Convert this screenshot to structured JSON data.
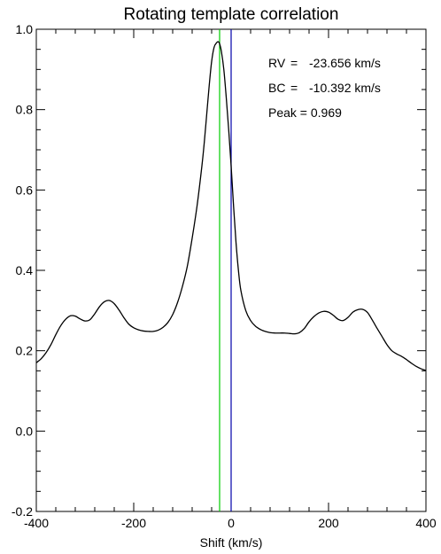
{
  "chart_data": {
    "type": "line",
    "title": "Rotating template correlation",
    "xlabel": "Shift (km/s)",
    "ylabel": "",
    "xlim": [
      -400,
      400
    ],
    "ylim": [
      -0.2,
      1.0
    ],
    "xticks": [
      -400,
      -200,
      0,
      200,
      400
    ],
    "xtick_labels": [
      "-400",
      "-200",
      "0",
      "200",
      "400"
    ],
    "yticks": [
      -0.2,
      0.0,
      0.2,
      0.4,
      0.6,
      0.8,
      1.0
    ],
    "ytick_labels": [
      "-0.2",
      "0.0",
      "0.2",
      "0.4",
      "0.6",
      "0.8",
      "1.0"
    ],
    "grid": false,
    "series": [
      {
        "color": "#000000",
        "x": [
          -400,
          -390,
          -380,
          -370,
          -360,
          -350,
          -340,
          -330,
          -320,
          -310,
          -300,
          -290,
          -280,
          -270,
          -260,
          -250,
          -240,
          -230,
          -220,
          -210,
          -200,
          -190,
          -180,
          -170,
          -160,
          -150,
          -140,
          -130,
          -120,
          -110,
          -100,
          -90,
          -80,
          -70,
          -60,
          -55,
          -50,
          -45,
          -40,
          -35,
          -30,
          -27,
          -24,
          -20,
          -15,
          -10,
          -5,
          0,
          5,
          10,
          15,
          20,
          30,
          40,
          50,
          60,
          70,
          80,
          90,
          100,
          110,
          120,
          130,
          140,
          150,
          160,
          170,
          180,
          190,
          200,
          210,
          220,
          230,
          240,
          250,
          260,
          270,
          280,
          290,
          300,
          310,
          320,
          330,
          340,
          350,
          360,
          370,
          380,
          390,
          400
        ],
        "y": [
          0.17,
          0.18,
          0.195,
          0.215,
          0.24,
          0.262,
          0.278,
          0.287,
          0.286,
          0.279,
          0.274,
          0.277,
          0.292,
          0.31,
          0.322,
          0.325,
          0.317,
          0.301,
          0.282,
          0.266,
          0.257,
          0.252,
          0.249,
          0.248,
          0.248,
          0.251,
          0.258,
          0.27,
          0.29,
          0.32,
          0.36,
          0.41,
          0.48,
          0.56,
          0.66,
          0.72,
          0.79,
          0.86,
          0.92,
          0.955,
          0.966,
          0.969,
          0.965,
          0.945,
          0.9,
          0.83,
          0.75,
          0.66,
          0.56,
          0.47,
          0.4,
          0.35,
          0.3,
          0.275,
          0.261,
          0.253,
          0.248,
          0.245,
          0.244,
          0.244,
          0.244,
          0.243,
          0.242,
          0.245,
          0.255,
          0.272,
          0.285,
          0.294,
          0.298,
          0.296,
          0.288,
          0.278,
          0.275,
          0.283,
          0.296,
          0.302,
          0.303,
          0.295,
          0.276,
          0.255,
          0.235,
          0.215,
          0.2,
          0.192,
          0.186,
          0.178,
          0.169,
          0.161,
          0.155,
          0.151
        ]
      }
    ],
    "vlines": [
      {
        "x": -23.656,
        "color": "#00cc00"
      },
      {
        "x": 0,
        "color": "#0000aa"
      }
    ],
    "annotations": [
      {
        "label": "RV",
        "sep": "=",
        "value": "-23.656 km/s"
      },
      {
        "label": "BC",
        "sep": "=",
        "value": "-10.392 km/s"
      },
      {
        "label": "Peak = 0.969",
        "sep": "",
        "value": ""
      }
    ]
  }
}
